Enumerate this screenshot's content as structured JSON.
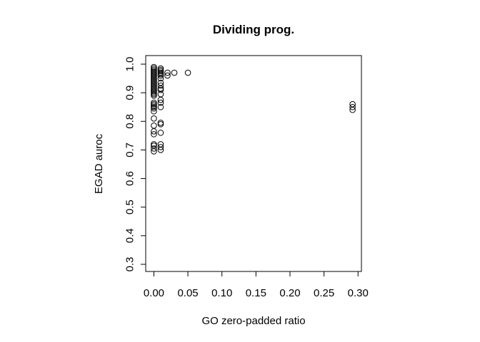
{
  "chart_data": {
    "type": "scatter",
    "title": "Dividing prog.",
    "xlabel": "GO zero-padded ratio",
    "ylabel": "EGAD auroc",
    "xlim": [
      -0.012,
      0.305
    ],
    "ylim": [
      0.275,
      1.03
    ],
    "xticks": [
      0.0,
      0.05,
      0.1,
      0.15,
      0.2,
      0.25,
      0.3
    ],
    "xtick_labels": [
      "0.00",
      "0.05",
      "0.10",
      "0.15",
      "0.20",
      "0.25",
      "0.30"
    ],
    "yticks": [
      0.3,
      0.4,
      0.5,
      0.6,
      0.7,
      0.8,
      0.9,
      1.0
    ],
    "ytick_labels": [
      "0.3",
      "0.4",
      "0.5",
      "0.6",
      "0.7",
      "0.8",
      "0.9",
      "1.0"
    ],
    "marker": "open-circle",
    "grid": false,
    "series": [
      {
        "points": [
          [
            0.0,
            0.99
          ],
          [
            0.0,
            0.985
          ],
          [
            0.0,
            0.98
          ],
          [
            0.0,
            0.975
          ],
          [
            0.0,
            0.97
          ],
          [
            0.0,
            0.965
          ],
          [
            0.0,
            0.96
          ],
          [
            0.0,
            0.955
          ],
          [
            0.0,
            0.95
          ],
          [
            0.0,
            0.945
          ],
          [
            0.0,
            0.94
          ],
          [
            0.0,
            0.935
          ],
          [
            0.0,
            0.93
          ],
          [
            0.0,
            0.925
          ],
          [
            0.0,
            0.92
          ],
          [
            0.0,
            0.915
          ],
          [
            0.0,
            0.91
          ],
          [
            0.0,
            0.905
          ],
          [
            0.0,
            0.9
          ],
          [
            0.0,
            0.895
          ],
          [
            0.0,
            0.89
          ],
          [
            0.0,
            0.865
          ],
          [
            0.0,
            0.86
          ],
          [
            0.0,
            0.855
          ],
          [
            0.0,
            0.85
          ],
          [
            0.0,
            0.845
          ],
          [
            0.0,
            0.835
          ],
          [
            0.0,
            0.81
          ],
          [
            0.0,
            0.785
          ],
          [
            0.0,
            0.765
          ],
          [
            0.0,
            0.755
          ],
          [
            0.0,
            0.72
          ],
          [
            0.0,
            0.715
          ],
          [
            0.0,
            0.705
          ],
          [
            0.0,
            0.695
          ],
          [
            0.01,
            0.985
          ],
          [
            0.01,
            0.98
          ],
          [
            0.01,
            0.975
          ],
          [
            0.01,
            0.97
          ],
          [
            0.01,
            0.965
          ],
          [
            0.01,
            0.96
          ],
          [
            0.01,
            0.95
          ],
          [
            0.01,
            0.935
          ],
          [
            0.01,
            0.925
          ],
          [
            0.01,
            0.915
          ],
          [
            0.01,
            0.91
          ],
          [
            0.01,
            0.895
          ],
          [
            0.01,
            0.875
          ],
          [
            0.01,
            0.865
          ],
          [
            0.01,
            0.85
          ],
          [
            0.01,
            0.795
          ],
          [
            0.01,
            0.79
          ],
          [
            0.01,
            0.76
          ],
          [
            0.01,
            0.72
          ],
          [
            0.01,
            0.71
          ],
          [
            0.01,
            0.7
          ],
          [
            0.02,
            0.97
          ],
          [
            0.02,
            0.96
          ],
          [
            0.03,
            0.97
          ],
          [
            0.05,
            0.97
          ],
          [
            0.292,
            0.86
          ],
          [
            0.292,
            0.85
          ],
          [
            0.292,
            0.84
          ]
        ]
      }
    ]
  }
}
